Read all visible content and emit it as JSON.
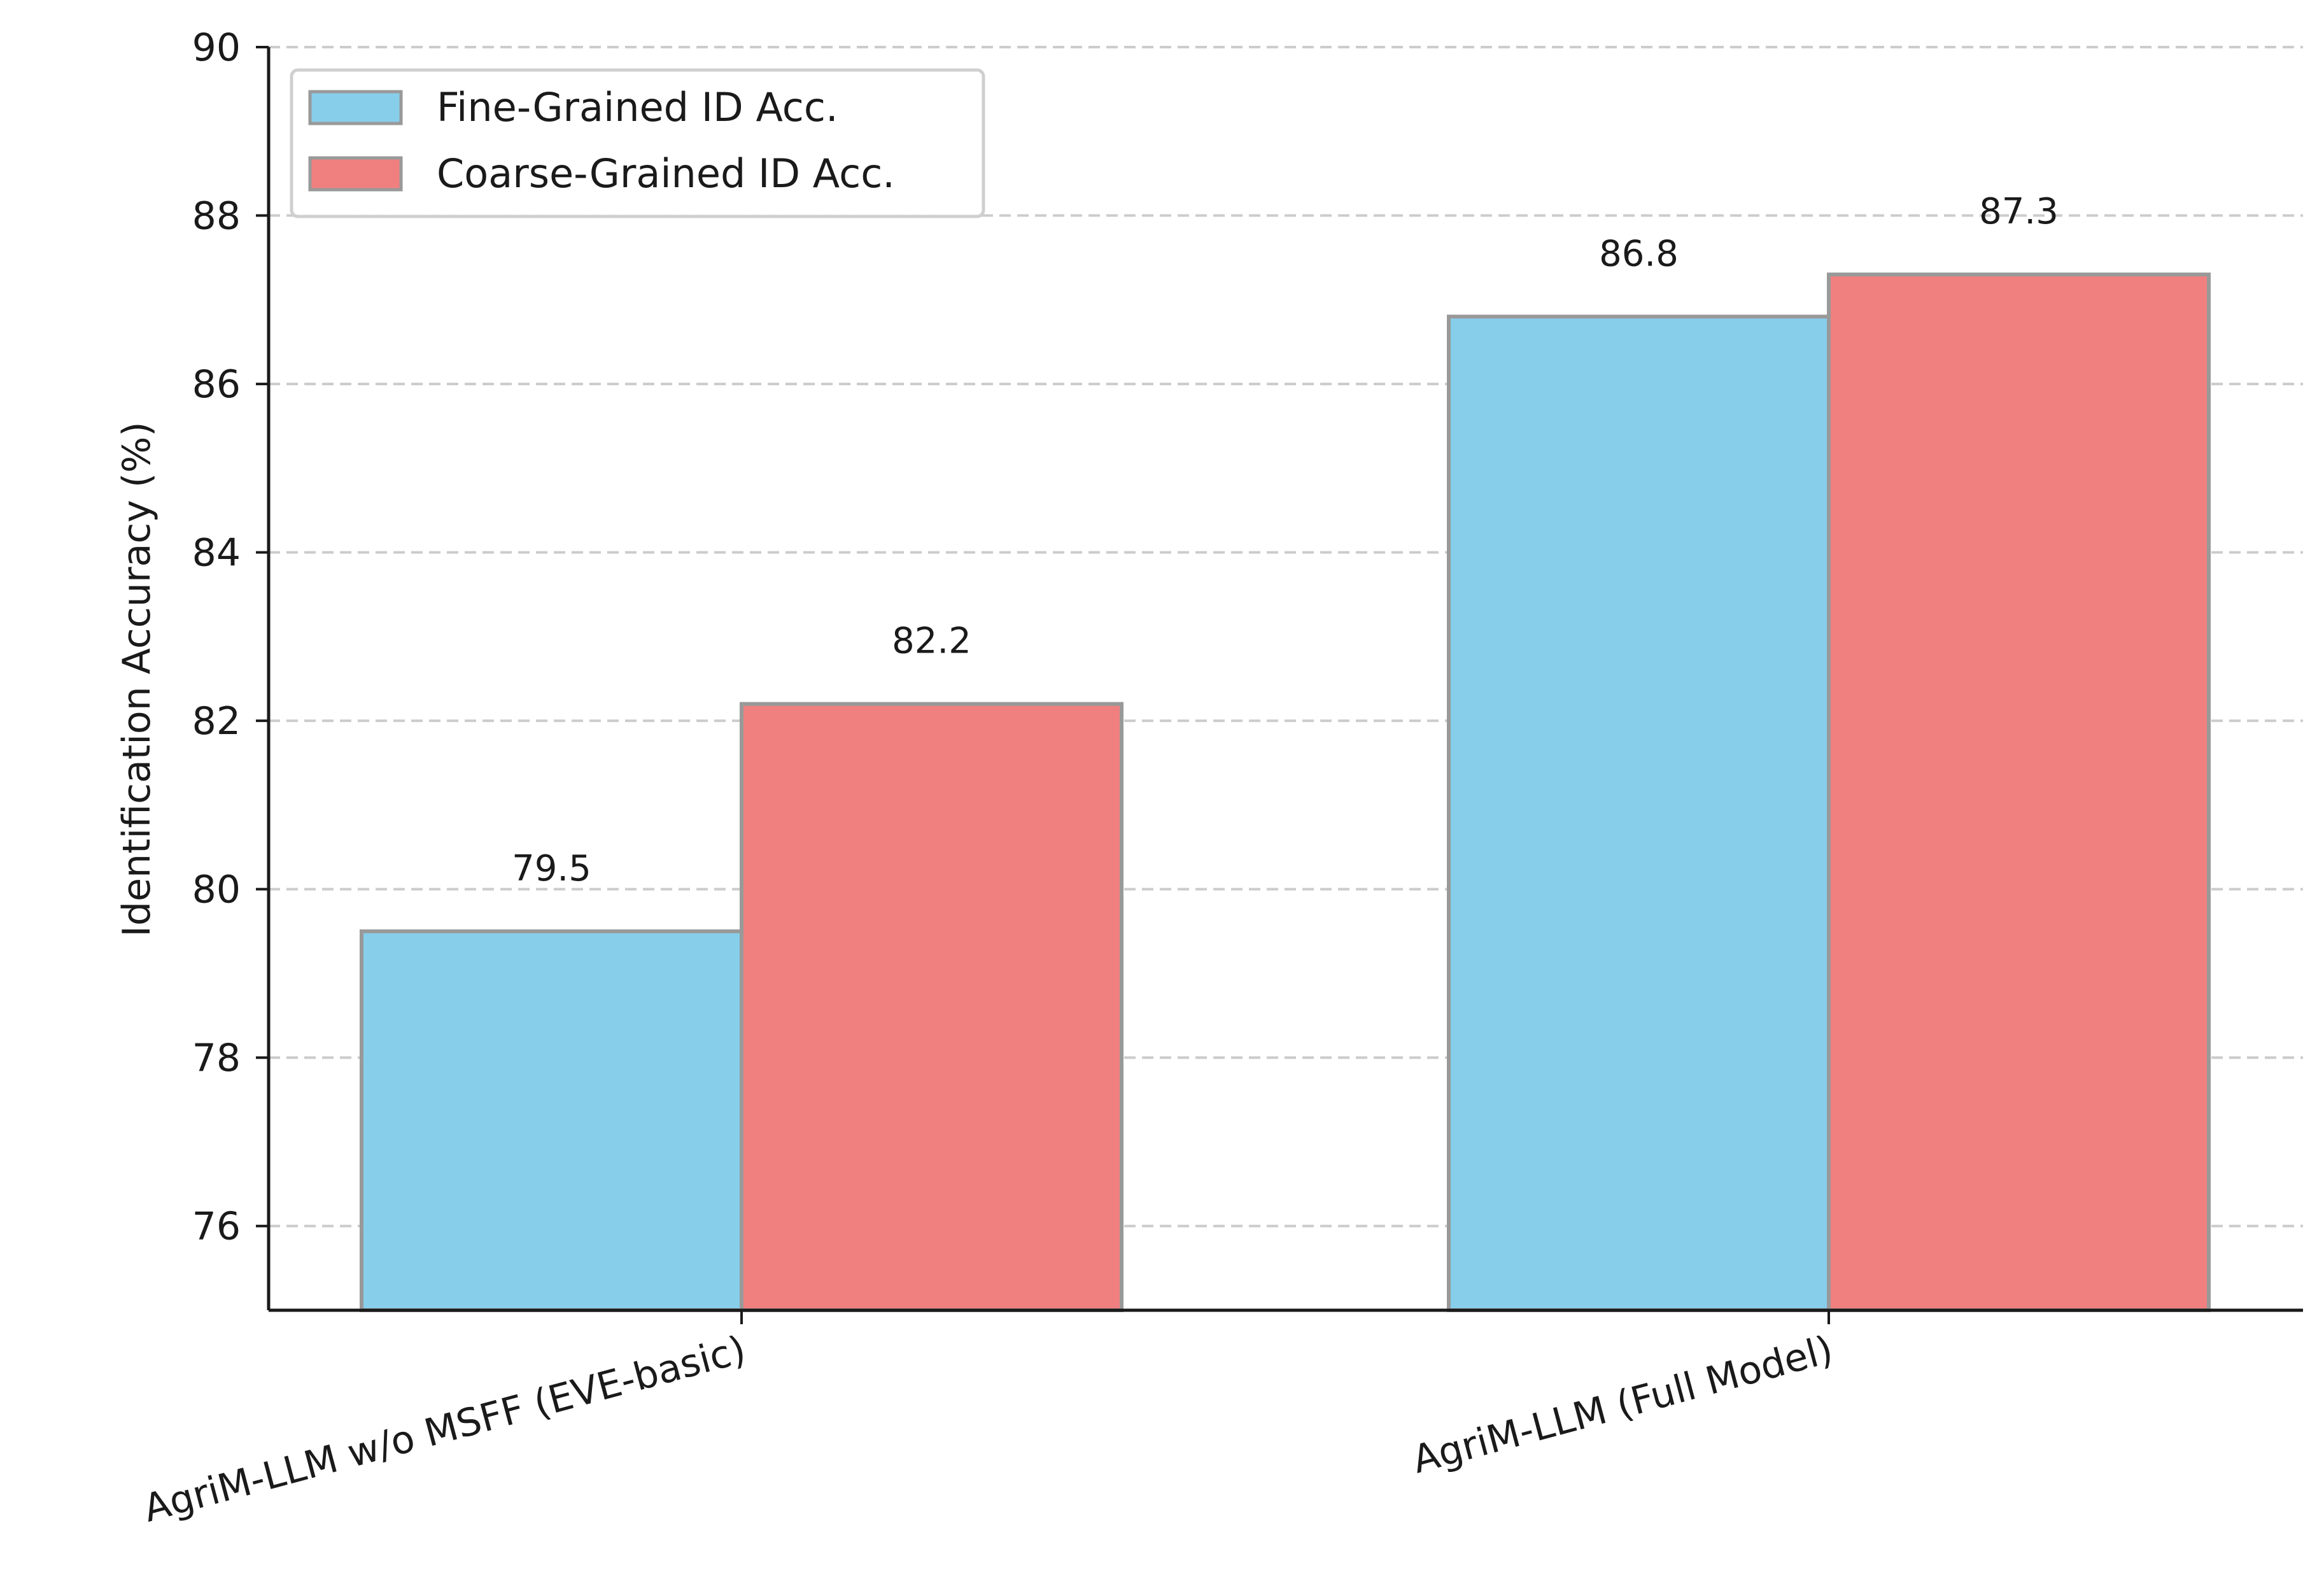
{
  "chart_data": {
    "type": "bar",
    "categories": [
      "AgriM-LLM w/o MSFF (EVE-basic)",
      "AgriM-LLM (Full Model)"
    ],
    "series": [
      {
        "name": "Fine-Grained ID Acc.",
        "values": [
          79.5,
          86.8
        ],
        "color": "#87CEEB"
      },
      {
        "name": "Coarse-Grained ID Acc.",
        "values": [
          82.2,
          87.3
        ],
        "color": "#F08080"
      }
    ],
    "data_labels": [
      [
        "79.5",
        "86.8"
      ],
      [
        "82.2",
        "87.3"
      ]
    ],
    "title": "",
    "xlabel": "",
    "ylabel": "Identification Accuracy (%)",
    "ylim": [
      75,
      90
    ],
    "yticks": [
      "76",
      "78",
      "80",
      "82",
      "84",
      "86",
      "88",
      "90"
    ],
    "grid": "horizontal dashed",
    "legend_position": "top-left",
    "bar_edge_color": "#999999",
    "grid_color": "#cccccc",
    "axis_color": "#1a1a1a"
  }
}
